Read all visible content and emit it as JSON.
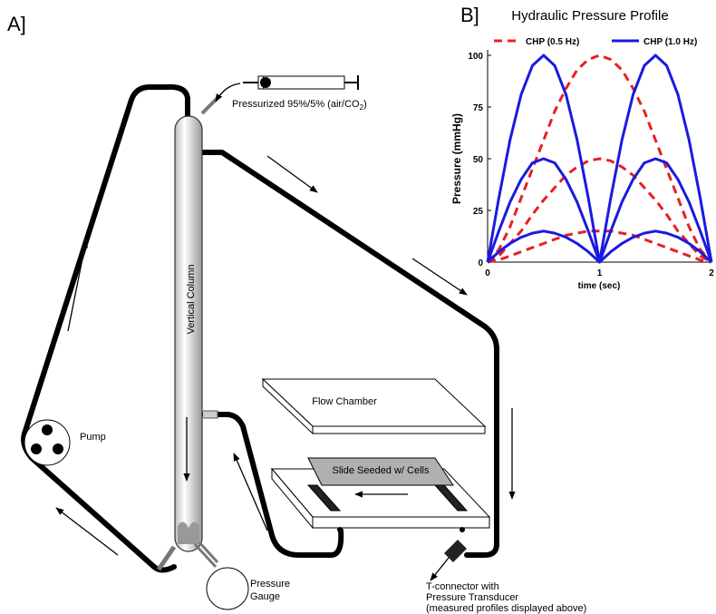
{
  "panel_a": {
    "label": "A]",
    "gas_label": [
      "Pressurized 95%/5% (air/CO",
      "2",
      ")"
    ],
    "column_label": "Vertical Column",
    "flow_chamber": "Flow Chamber",
    "slide": "Slide Seeded w/ Cells",
    "pump": "Pump",
    "gauge": [
      "Pressure",
      "Gauge"
    ],
    "connector": [
      "T-connector with",
      "Pressure Transducer",
      "(measured profiles displayed above)"
    ]
  },
  "panel_b_label": "B]",
  "chart_data": {
    "type": "line",
    "title": "Hydraulic Pressure Profile",
    "x_label": "time (sec)",
    "y_label": "Pressure (mmHg)",
    "x": [
      0,
      0.1,
      0.2,
      0.3,
      0.4,
      0.5,
      0.6,
      0.7,
      0.8,
      0.9,
      1,
      1.1,
      1.2,
      1.3,
      1.4,
      1.5,
      1.6,
      1.7,
      1.8,
      1.9,
      2
    ],
    "xlim": [
      0,
      2
    ],
    "xticks": [
      0,
      1,
      2
    ],
    "ylim": [
      0,
      100
    ],
    "yticks": [
      0,
      25,
      50,
      75,
      100
    ],
    "series": [
      {
        "name": "CHP (0.5 Hz)",
        "color": "#e82020",
        "line_style": "dashed",
        "curves": [
          [
            0,
            6,
            17,
            31,
            45,
            59,
            73,
            84,
            93,
            98,
            100,
            98,
            93,
            84,
            73,
            59,
            45,
            31,
            17,
            6,
            0
          ],
          [
            0,
            3,
            9,
            15,
            23,
            30,
            36,
            42,
            46,
            49,
            50,
            49,
            46,
            42,
            36,
            30,
            23,
            15,
            9,
            3,
            0
          ],
          [
            0,
            1,
            3,
            5,
            7,
            9,
            11,
            13,
            14,
            15,
            15,
            15,
            14,
            13,
            11,
            9,
            7,
            5,
            3,
            1,
            0
          ]
        ]
      },
      {
        "name": "CHP (1.0 Hz)",
        "color": "#1a1ae0",
        "line_style": "solid",
        "curves": [
          [
            0,
            31,
            59,
            81,
            95,
            100,
            95,
            81,
            59,
            31,
            0,
            31,
            59,
            81,
            95,
            100,
            95,
            81,
            59,
            31,
            0
          ],
          [
            0,
            15,
            29,
            40,
            48,
            50,
            48,
            40,
            29,
            15,
            0,
            15,
            29,
            40,
            48,
            50,
            48,
            40,
            29,
            15,
            0
          ],
          [
            0,
            5,
            9,
            12,
            14,
            15,
            14,
            12,
            9,
            5,
            0,
            5,
            9,
            12,
            14,
            15,
            14,
            12,
            9,
            5,
            0
          ]
        ]
      }
    ]
  }
}
